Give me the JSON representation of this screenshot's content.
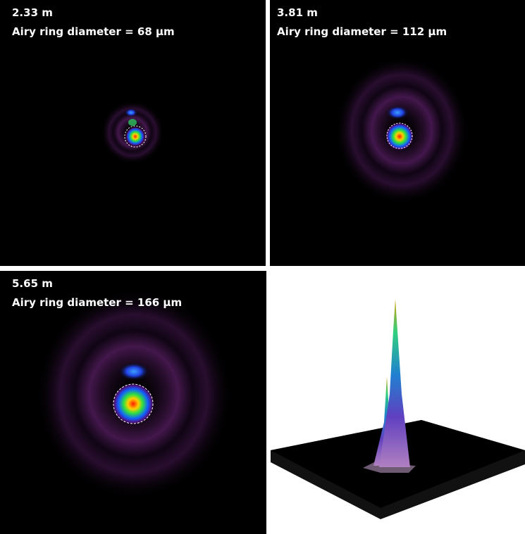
{
  "panels": [
    {
      "distance": "2.33 m",
      "caption": "Airy ring diameter = 68 µm"
    },
    {
      "distance": "3.81 m",
      "caption": "Airy ring diameter = 112 µm"
    },
    {
      "distance": "5.65 m",
      "caption": "Airy ring diameter = 166 µm"
    }
  ]
}
